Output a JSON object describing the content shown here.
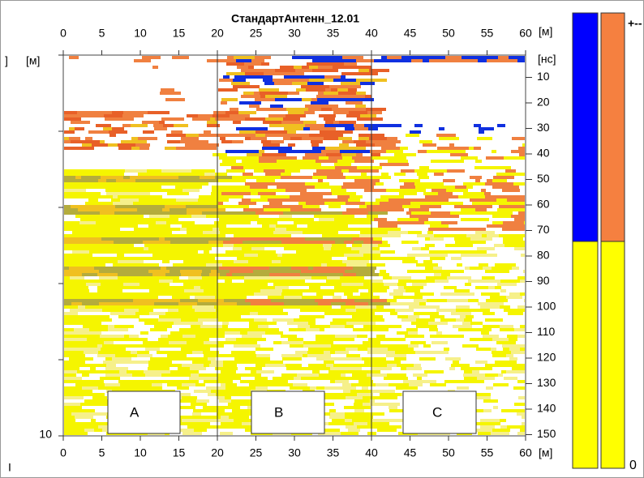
{
  "title": "СтандартАнтенн_12.01",
  "x_axis": {
    "unit_top": "[м]",
    "unit_bottom": "[м]",
    "ticks_top": [
      "0",
      "5",
      "10",
      "15",
      "20",
      "25",
      "30",
      "35",
      "40",
      "45",
      "50",
      "55",
      "60"
    ],
    "ticks_bottom": [
      "0",
      "5",
      "10",
      "15",
      "20",
      "25",
      "30",
      "35",
      "40",
      "45",
      "50",
      "55",
      "60"
    ]
  },
  "y_axis_right": {
    "unit": "[нс]",
    "ticks": [
      "10",
      "20",
      "30",
      "40",
      "50",
      "60",
      "70",
      "80",
      "90",
      "100",
      "110",
      "120",
      "130",
      "140",
      "150"
    ]
  },
  "y_axis_left": {
    "bracket": "]",
    "unit": "[м]",
    "bottom_label": "10"
  },
  "zones": [
    "A",
    "B",
    "C"
  ],
  "color_scale": {
    "max_label": "+--",
    "min_label": "0"
  },
  "status_mark": "I"
}
